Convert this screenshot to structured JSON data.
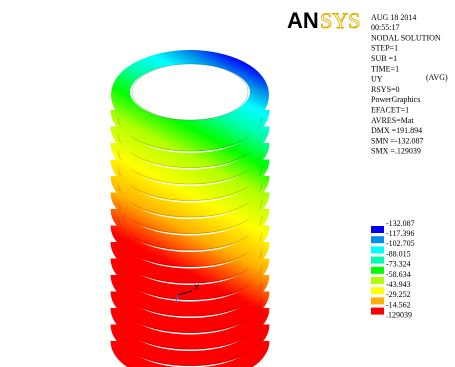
{
  "logo": {
    "bold": "AN",
    "outline": "SYS"
  },
  "info": [
    "AUG 18 2014",
    "00:55:17",
    "NODAL SOLUTION",
    "STEP=1",
    "SUB =1",
    "TIME=1",
    "UY",
    "RSYS=0",
    "PowerGraphics",
    "EFACET=1",
    "AVRES=Mat",
    "DMX =191.894",
    "SMN =-132.087",
    "SMX =.129039"
  ],
  "avg": "(AVG)",
  "legend": {
    "labels": [
      "-132.087",
      "-117.396",
      "-102.705",
      "-88.015",
      "-73.324",
      "-58.634",
      "-43.943",
      "-29.252",
      "-14.562",
      ".129039"
    ],
    "colors": [
      "#0000ff",
      "#0090e8",
      "#00ffff",
      "#00ffb0",
      "#00ff00",
      "#b0ff00",
      "#ffff00",
      "#ffb000",
      "#ff0000"
    ]
  },
  "triad": {
    "x": "X"
  }
}
